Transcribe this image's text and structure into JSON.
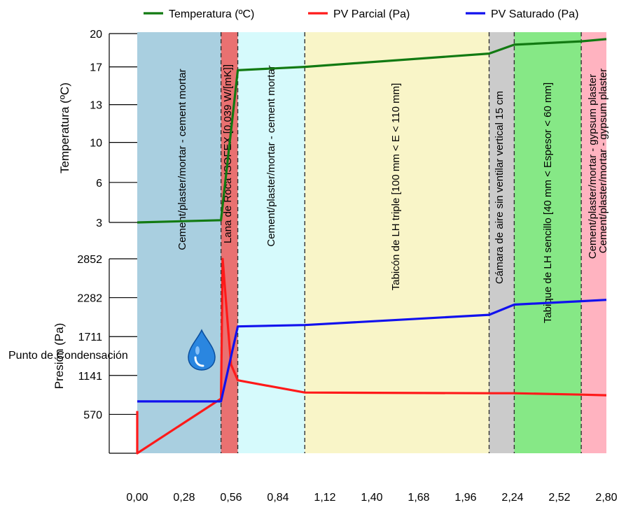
{
  "legend": [
    {
      "label": "Temperatura (ºC)",
      "color": "#127A12"
    },
    {
      "label": "PV Parcial (Pa)",
      "color": "#FF1A1A"
    },
    {
      "label": "PV Saturado (Pa)",
      "color": "#1111EE"
    }
  ],
  "condensation_label": "Punto de Condensación",
  "chart_data": [
    {
      "type": "line",
      "ylabel": "Temperatura (ºC)",
      "ylim": [
        3,
        20
      ],
      "yticks": [
        "20",
        "17",
        "13",
        "10",
        "6",
        "3"
      ],
      "ytick_values": [
        20,
        17,
        13.6,
        10.2,
        6.6,
        3
      ],
      "series": [
        {
          "name": "Temperatura (ºC)",
          "color": "#127A12",
          "x": [
            0.0,
            0.5,
            0.6,
            1.0,
            2.1,
            2.25,
            2.65,
            2.8
          ],
          "y": [
            3.0,
            3.2,
            16.7,
            17.0,
            18.2,
            19.0,
            19.3,
            19.5
          ]
        }
      ]
    },
    {
      "type": "line",
      "ylabel": "Presión (Pa)",
      "ylim": [
        0,
        2852
      ],
      "yticks": [
        "2852",
        "2282",
        "1711",
        "1141",
        "570"
      ],
      "ytick_values": [
        2852,
        2282,
        1711,
        1141,
        570
      ],
      "series": [
        {
          "name": "PV Parcial (Pa)",
          "color": "#FF1A1A",
          "x": [
            0.0,
            0.0,
            0.5,
            0.51,
            0.54,
            0.56,
            0.6,
            1.0,
            2.1,
            2.25,
            2.65,
            2.8
          ],
          "y": [
            620,
            0,
            800,
            2850,
            1900,
            1300,
            1070,
            890,
            880,
            880,
            860,
            850
          ]
        },
        {
          "name": "PV Saturado (Pa)",
          "color": "#1111EE",
          "x": [
            0.0,
            0.5,
            0.6,
            1.0,
            2.1,
            2.25,
            2.65,
            2.8
          ],
          "y": [
            760,
            760,
            1860,
            1880,
            2030,
            2180,
            2230,
            2250
          ]
        }
      ]
    }
  ],
  "x_axis": {
    "xlim": [
      0,
      2.8
    ],
    "ticks": [
      "0,00",
      "0,28",
      "0,56",
      "0,84",
      "1,12",
      "1,40",
      "1,68",
      "1,96",
      "2,24",
      "2,52",
      "2,80"
    ],
    "tick_values": [
      0,
      0.28,
      0.56,
      0.84,
      1.12,
      1.4,
      1.68,
      1.96,
      2.24,
      2.52,
      2.8
    ]
  },
  "layers": [
    {
      "label": "Cement/plaster/mortar - cement mortar",
      "from": 0.0,
      "to": 0.5,
      "color": "#A9CFE0"
    },
    {
      "label": "Lana de Roca ISOFEX [0.039 W/[mK]]",
      "from": 0.5,
      "to": 0.6,
      "color": "#E97171"
    },
    {
      "label": "Cement/plaster/mortar - cement mortar",
      "from": 0.6,
      "to": 1.0,
      "color": "#D6FAFC"
    },
    {
      "label": "Tabicón de LH triple [100 mm < E < 110 mm]",
      "from": 1.0,
      "to": 2.1,
      "color": "#F9F5C8"
    },
    {
      "label": "Cámara de aire sin ventilar vertical 15 cm",
      "from": 2.1,
      "to": 2.25,
      "color": "#CBCBCB"
    },
    {
      "label": "Tabique de LH sencillo [40 mm < Espesor < 60 mm]",
      "from": 2.25,
      "to": 2.65,
      "color": "#86E886"
    },
    {
      "label": "Cement/plaster/mortar - gypsum plaster",
      "from": 2.65,
      "to": 2.8,
      "color": "#FFB3C0"
    },
    {
      "label": "Cement/plaster/mortar - gypsum plaster",
      "from": 2.65,
      "to": 2.8,
      "color": "#FFB3C0"
    }
  ],
  "icons": {
    "condensation": "water-drop-icon"
  }
}
